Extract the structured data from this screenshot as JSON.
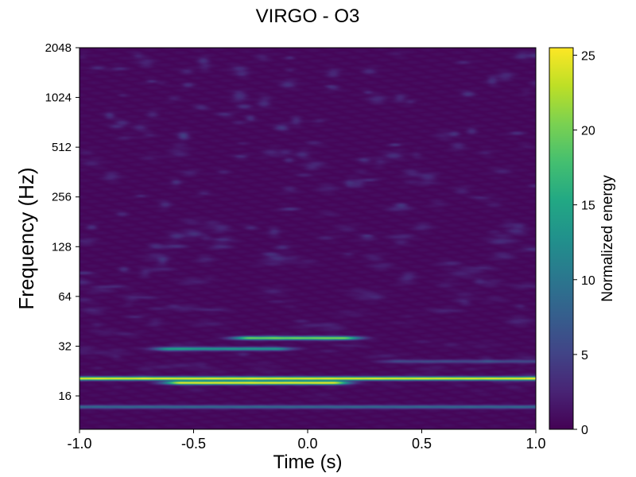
{
  "chart_data": {
    "type": "heatmap",
    "title": "VIRGO - O3",
    "xlabel": "Time (s)",
    "ylabel": "Frequency (Hz)",
    "xlim": [
      -1.0,
      1.0
    ],
    "ylim": [
      10,
      2048
    ],
    "yscale": "log2",
    "xticks": [
      "-1.0",
      "-0.5",
      "0.0",
      "0.5",
      "1.0"
    ],
    "xtick_values": [
      -1.0,
      -0.5,
      0.0,
      0.5,
      1.0
    ],
    "yticks": [
      "16",
      "32",
      "64",
      "128",
      "256",
      "512",
      "1024",
      "2048"
    ],
    "ytick_values": [
      16,
      32,
      64,
      128,
      256,
      512,
      1024,
      2048
    ],
    "colorbar": {
      "label": "Normalized energy",
      "range": [
        0,
        25.5
      ],
      "ticks": [
        "0",
        "5",
        "10",
        "15",
        "20",
        "25"
      ],
      "tick_values": [
        0,
        5,
        10,
        15,
        20,
        25
      ],
      "colormap": "viridis"
    },
    "features": [
      {
        "t_start": -1.0,
        "t_end": 1.0,
        "frequency": 20.5,
        "energy": 25,
        "kind": "persistent line"
      },
      {
        "t_start": -0.55,
        "t_end": 0.1,
        "frequency": 19.3,
        "energy": 25,
        "kind": "bright segment"
      },
      {
        "t_start": -0.25,
        "t_end": 0.15,
        "frequency": 36,
        "energy": 20,
        "kind": "short blob"
      },
      {
        "t_start": -0.6,
        "t_end": -0.15,
        "frequency": 31,
        "energy": 13,
        "kind": "short blob"
      },
      {
        "t_start": -1.0,
        "t_end": 1.0,
        "frequency": 13.8,
        "energy": 8,
        "kind": "persistent line"
      },
      {
        "t_start": 0.4,
        "t_end": 1.0,
        "frequency": 26,
        "energy": 5,
        "kind": "faint band"
      }
    ]
  },
  "colors": {
    "viridis_low": "#440154",
    "viridis_high": "#fde725"
  }
}
